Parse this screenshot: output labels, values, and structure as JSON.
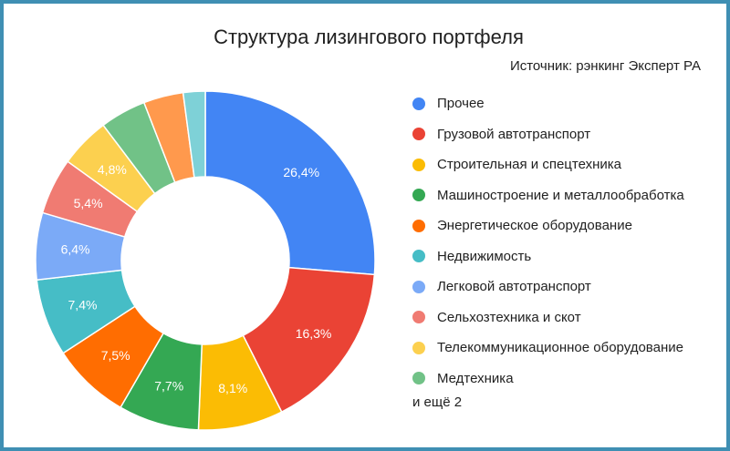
{
  "title": "Структура лизингового портфеля",
  "subtitle": "Источник: рэнкинг Эксперт РА",
  "legend_more": "и ещё 2",
  "chart_data": {
    "type": "pie",
    "donut": true,
    "title": "Структура лизингового портфеля",
    "subtitle": "Источник: рэнкинг Эксперт РА",
    "legend_position": "right",
    "slices": [
      {
        "name": "Прочее",
        "value": 26.4,
        "label": "26,4%",
        "color": "#4285f4"
      },
      {
        "name": "Грузовой автотранспорт",
        "value": 16.3,
        "label": "16,3%",
        "color": "#ea4335"
      },
      {
        "name": "Строительная и спецтехника",
        "value": 8.1,
        "label": "8,1%",
        "color": "#fbbc04"
      },
      {
        "name": "Машиностроение и металлообработка",
        "value": 7.7,
        "label": "7,7%",
        "color": "#34a853"
      },
      {
        "name": "Энергетическое оборудование",
        "value": 7.5,
        "label": "7,5%",
        "color": "#ff6d01"
      },
      {
        "name": "Недвижимость",
        "value": 7.4,
        "label": "7,4%",
        "color": "#46bdc6"
      },
      {
        "name": "Легковой автотранспорт",
        "value": 6.4,
        "label": "6,4%",
        "color": "#7baaf7"
      },
      {
        "name": "Сельхозтехника и скот",
        "value": 5.4,
        "label": "5,4%",
        "color": "#f07b72"
      },
      {
        "name": "Телекоммуникационное оборудование",
        "value": 4.8,
        "label": "4,8%",
        "color": "#fcd04f"
      },
      {
        "name": "Медтехника",
        "value": 4.4,
        "label": "",
        "color": "#71c287"
      },
      {
        "name": "",
        "value": 3.8,
        "label": "",
        "color": "#ff994d"
      },
      {
        "name": "",
        "value": 2.1,
        "label": "",
        "color": "#7ed1d7"
      }
    ]
  }
}
